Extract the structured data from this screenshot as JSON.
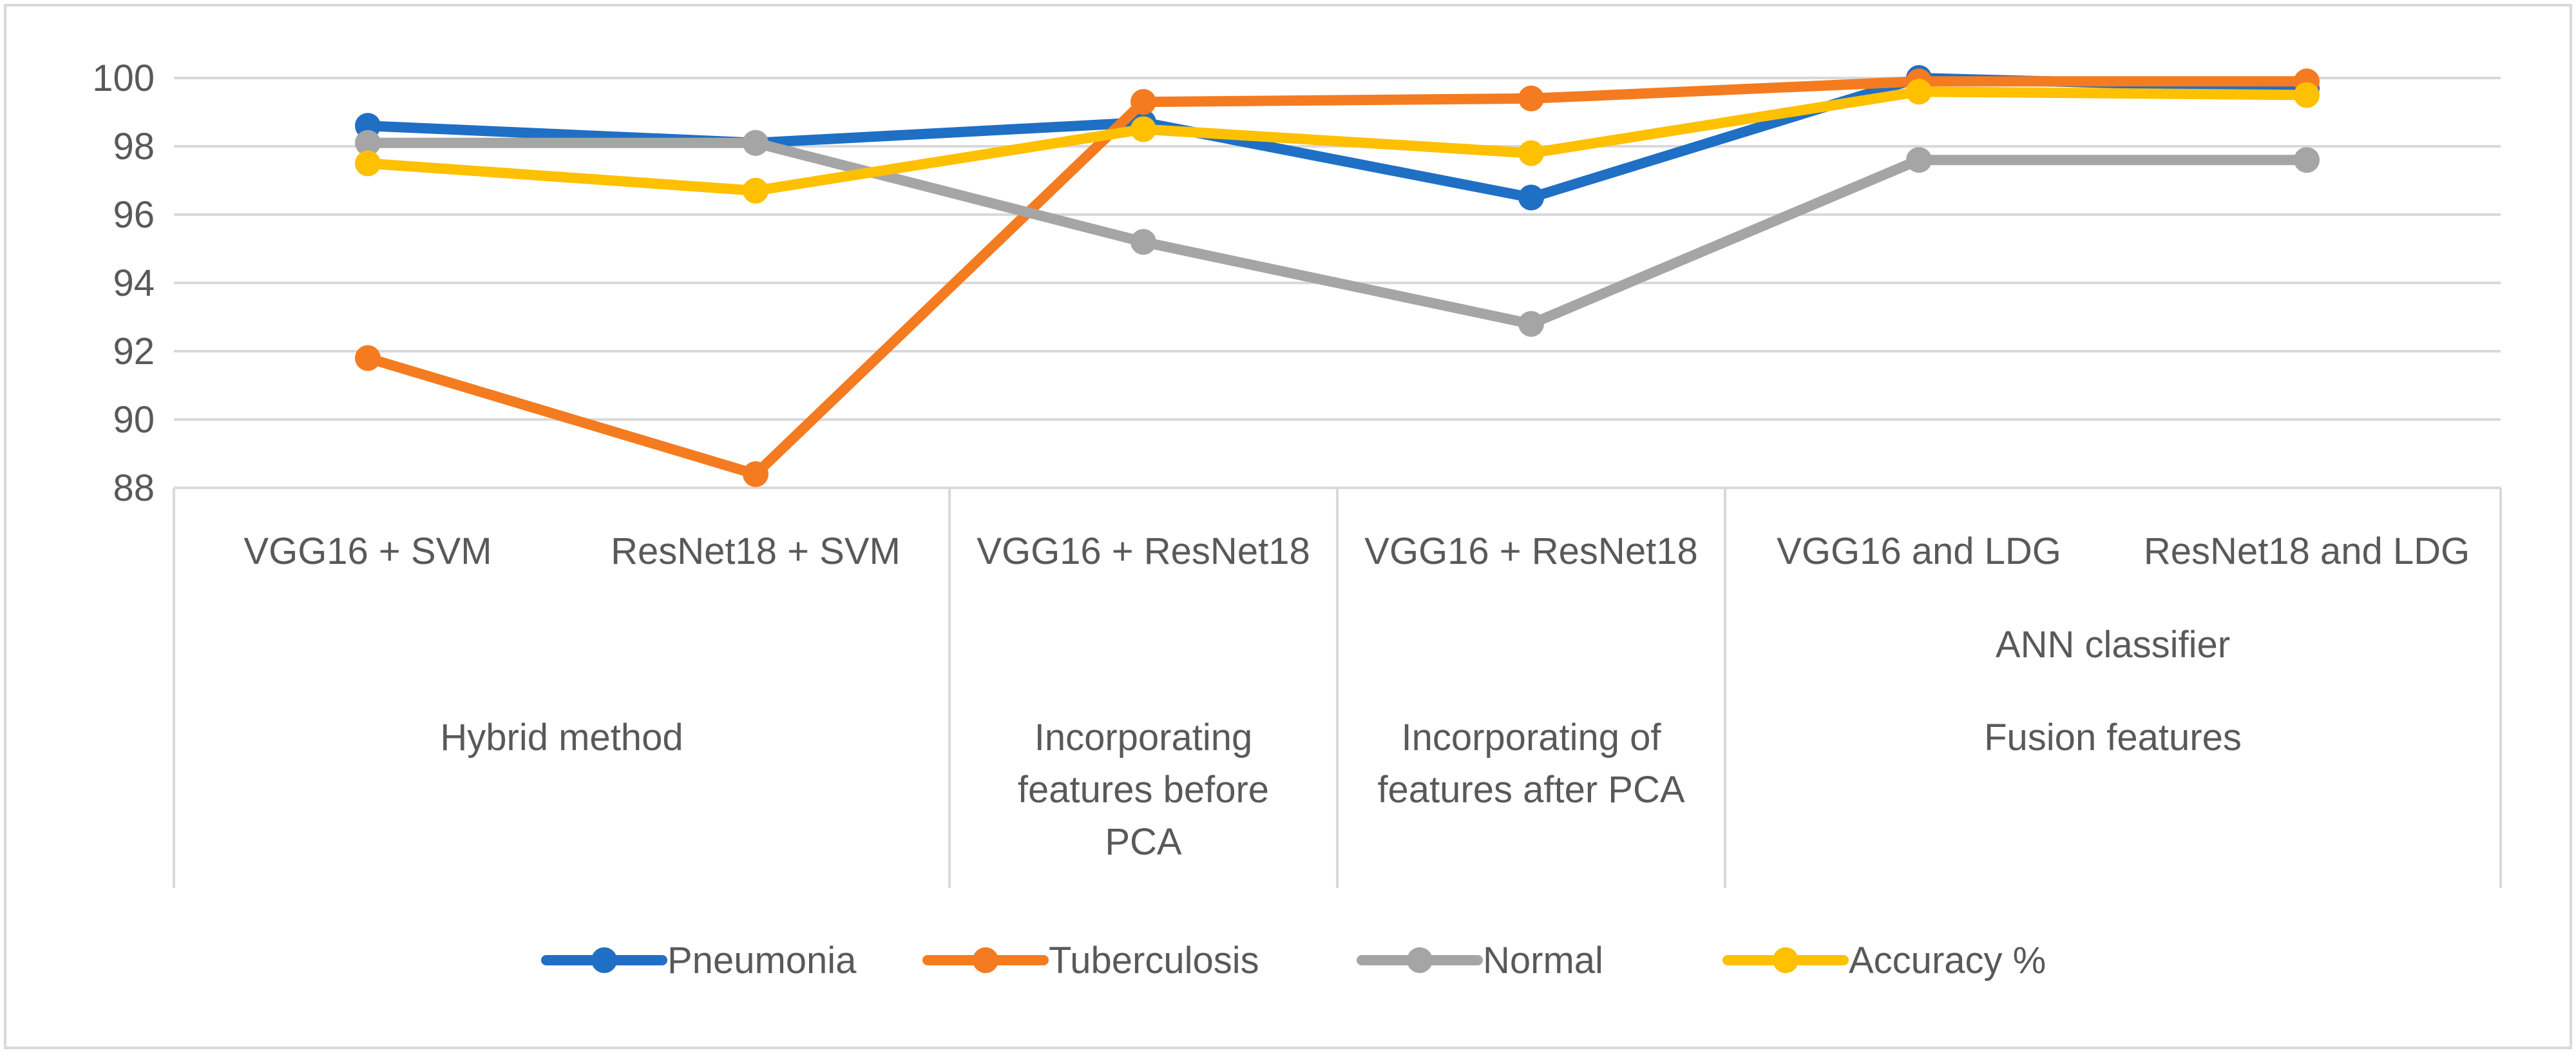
{
  "chart_data": {
    "type": "line",
    "title": "",
    "xlabel": "",
    "ylabel": "",
    "ylim": [
      88,
      100
    ],
    "yticks": [
      88,
      90,
      92,
      94,
      96,
      98,
      100
    ],
    "grid": true,
    "legend_position": "bottom",
    "categories": [
      "VGG16 + SVM",
      "ResNet18 + SVM",
      "VGG16 + ResNet18",
      "VGG16 + ResNet18",
      "VGG16 and LDG",
      "ResNet18 and LDG"
    ],
    "category_groups": [
      {
        "label_lines": [
          "Hybrid method"
        ],
        "span": [
          0,
          1
        ]
      },
      {
        "label_lines": [
          "Incorporating",
          "features before",
          "PCA"
        ],
        "span": [
          2,
          2
        ]
      },
      {
        "label_lines": [
          "Incorporating of",
          "features after PCA"
        ],
        "span": [
          3,
          3
        ]
      },
      {
        "label_lines": [
          "ANN classifier",
          "Fusion features"
        ],
        "span": [
          4,
          5
        ]
      }
    ],
    "series": [
      {
        "name": "Pneumonia",
        "color": "#1f6fc5",
        "values": [
          98.6,
          98.1,
          98.7,
          96.5,
          100,
          99.7
        ]
      },
      {
        "name": "Tuberculosis",
        "color": "#f47b20",
        "values": [
          91.8,
          88.4,
          99.3,
          99.4,
          99.9,
          99.9
        ]
      },
      {
        "name": "Normal",
        "color": "#a5a5a5",
        "values": [
          98.1,
          98.1,
          95.2,
          92.8,
          97.6,
          97.6
        ]
      },
      {
        "name": "Accuracy %",
        "color": "#ffc000",
        "values": [
          97.5,
          96.7,
          98.5,
          97.8,
          99.6,
          99.5
        ]
      }
    ]
  }
}
